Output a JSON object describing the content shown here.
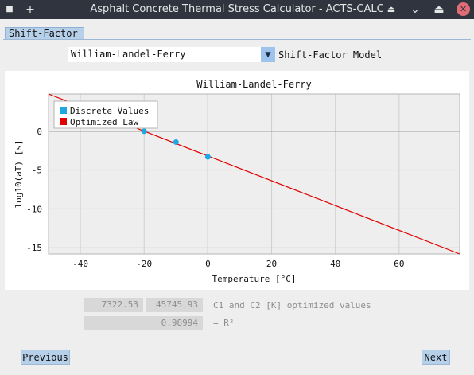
{
  "window": {
    "title": "Asphalt Concrete Thermal Stress Calculator - ACTS-CALC",
    "menu_glyph": "■",
    "add_glyph": "+",
    "pin_glyph": "⏏",
    "minimize_glyph": "⌄",
    "close_glyph": "✕"
  },
  "tabs": [
    {
      "label": "Shift-Factor",
      "active": true
    }
  ],
  "model": {
    "selected": "William-Landel-Ferry",
    "dropdown_glyph": "▼",
    "label": "Shift-Factor Model"
  },
  "chart_data": {
    "type": "scatter",
    "title": "William-Landel-Ferry",
    "xlabel": "Temperature [°C]",
    "ylabel": "log10(aT) [s]",
    "xlim": [
      -50,
      79
    ],
    "ylim": [
      -15.8,
      4.8
    ],
    "xticks": [
      -40,
      -20,
      0,
      20,
      40,
      60
    ],
    "yticks": [
      0,
      -5,
      -10,
      -15
    ],
    "grid": true,
    "legend_position": "top-left",
    "series": [
      {
        "name": "Discrete Values",
        "kind": "points",
        "color": "#1ea7e1",
        "points": [
          {
            "x": -20,
            "y": 0
          },
          {
            "x": -10,
            "y": -1.4
          },
          {
            "x": 0,
            "y": -3.3
          }
        ]
      },
      {
        "name": "Optimized Law",
        "kind": "line",
        "color": "#e00000",
        "points": [
          {
            "x": -50,
            "y": 4.8
          },
          {
            "x": 79,
            "y": -15.8
          }
        ]
      }
    ]
  },
  "results": {
    "c1": "7322.53",
    "c2": "45745.93",
    "c_label": "C1 and C2 [K] optimized values",
    "r2": "0.98994",
    "r2_label": "= R²"
  },
  "nav": {
    "previous": "Previous",
    "next": "Next"
  }
}
